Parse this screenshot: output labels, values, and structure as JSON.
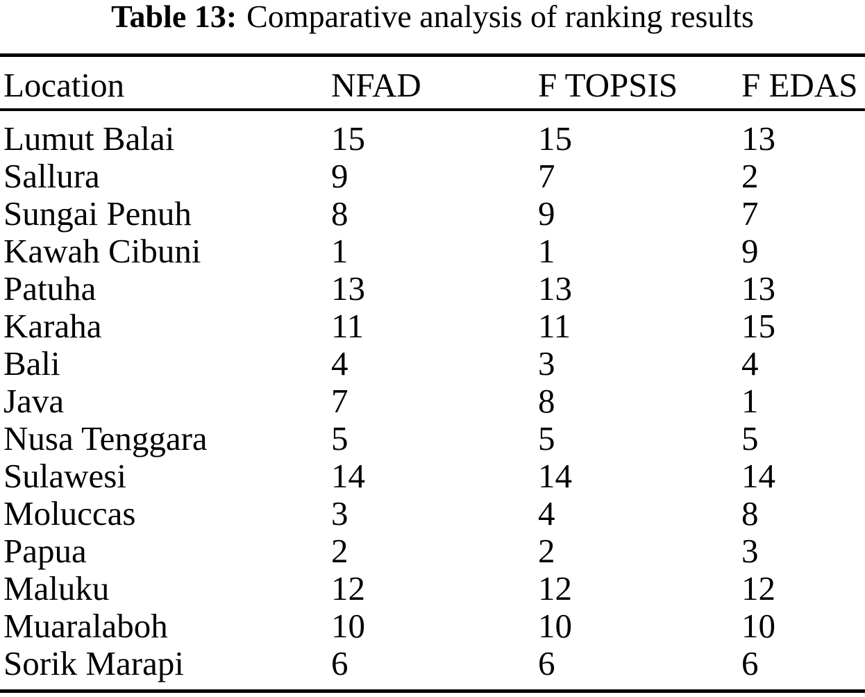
{
  "page": {
    "background_color": "#ffffff",
    "text_color": "#000000"
  },
  "caption": {
    "label": "Table 13:",
    "title": "Comparative analysis of ranking results"
  },
  "table": {
    "columns": [
      "Location",
      "NFAD",
      "F TOPSIS",
      "F EDAS"
    ],
    "rows": [
      [
        "Lumut Balai",
        "15",
        "15",
        "13"
      ],
      [
        "Sallura",
        "9",
        "7",
        "2"
      ],
      [
        "Sungai Penuh",
        "8",
        "9",
        "7"
      ],
      [
        "Kawah Cibuni",
        "1",
        "1",
        "9"
      ],
      [
        "Patuha",
        "13",
        "13",
        "13"
      ],
      [
        "Karaha",
        "11",
        "11",
        "15"
      ],
      [
        "Bali",
        "4",
        "3",
        "4"
      ],
      [
        "Java",
        "7",
        "8",
        "1"
      ],
      [
        "Nusa Tenggara",
        "5",
        "5",
        "5"
      ],
      [
        "Sulawesi",
        "14",
        "14",
        "14"
      ],
      [
        "Moluccas",
        "3",
        "4",
        "8"
      ],
      [
        "Papua",
        "2",
        "2",
        "3"
      ],
      [
        "Maluku",
        "12",
        "12",
        "12"
      ],
      [
        "Muaralaboh",
        "10",
        "10",
        "10"
      ],
      [
        "Sorik Marapi",
        "6",
        "6",
        "6"
      ]
    ]
  }
}
